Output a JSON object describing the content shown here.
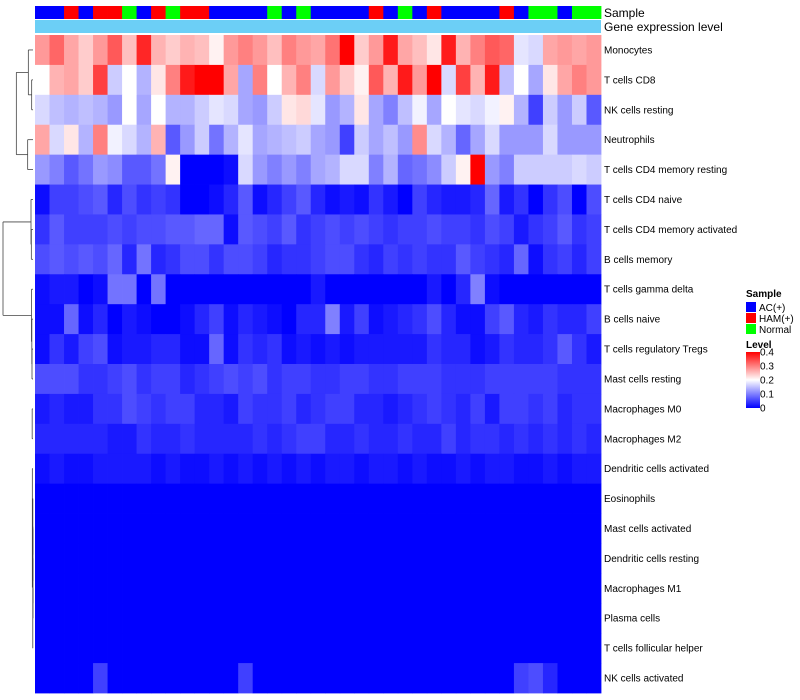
{
  "chart_data": {
    "type": "heatmap",
    "title": "",
    "value_range": [
      0,
      0.4
    ],
    "color_scale": [
      "#0000ff",
      "#ffffff",
      "#ff0000"
    ],
    "rows": [
      "Monocytes",
      "T cells CD8",
      "NK cells resting",
      "Neutrophils",
      "T cells CD4 memory resting",
      "T cells CD4 naive",
      "T cells CD4 memory activated",
      "B cells memory",
      "T cells gamma delta",
      "B cells naive",
      "T cells regulatory  Tregs",
      "Mast cells resting",
      "Macrophages M0",
      "Macrophages M2",
      "Dendritic cells activated",
      "Eosinophils",
      "Mast cells activated",
      "Dendritic cells resting",
      "Macrophages M1",
      "Plasma cells",
      "T cells follicular helper",
      "NK cells activated"
    ],
    "annotation_tracks": [
      {
        "name": "Sample",
        "label": "Sample"
      },
      {
        "name": "Gene expression level",
        "label": "Gene expression level",
        "color": "#6ccff6"
      }
    ],
    "sample_groups": [
      {
        "label": "AC(+)",
        "color": "#0000ff"
      },
      {
        "label": "HAM(+)",
        "color": "#ff0000"
      },
      {
        "label": "Normal",
        "color": "#00ff00"
      }
    ],
    "sample_annotation": [
      "AC(+)",
      "AC(+)",
      "HAM(+)",
      "AC(+)",
      "HAM(+)",
      "HAM(+)",
      "Normal",
      "AC(+)",
      "HAM(+)",
      "Normal",
      "HAM(+)",
      "HAM(+)",
      "AC(+)",
      "AC(+)",
      "AC(+)",
      "AC(+)",
      "Normal",
      "AC(+)",
      "Normal",
      "AC(+)",
      "AC(+)",
      "AC(+)",
      "AC(+)",
      "HAM(+)",
      "AC(+)",
      "Normal",
      "AC(+)",
      "HAM(+)",
      "AC(+)",
      "AC(+)",
      "AC(+)",
      "AC(+)",
      "HAM(+)",
      "AC(+)",
      "Normal",
      "Normal",
      "AC(+)",
      "Normal",
      "Normal"
    ],
    "values": [
      [
        0.28,
        0.32,
        0.27,
        0.24,
        0.28,
        0.33,
        0.25,
        0.37,
        0.26,
        0.24,
        0.26,
        0.25,
        0.21,
        0.28,
        0.3,
        0.28,
        0.25,
        0.3,
        0.28,
        0.27,
        0.31,
        0.4,
        0.24,
        0.28,
        0.38,
        0.27,
        0.25,
        0.22,
        0.38,
        0.26,
        0.3,
        0.33,
        0.32,
        0.18,
        0.17,
        0.27,
        0.28,
        0.27,
        0.28
      ],
      [
        0.2,
        0.26,
        0.27,
        0.24,
        0.35,
        0.16,
        0.2,
        0.14,
        0.22,
        0.3,
        0.38,
        0.4,
        0.4,
        0.27,
        0.13,
        0.3,
        0.2,
        0.26,
        0.3,
        0.17,
        0.28,
        0.24,
        0.21,
        0.33,
        0.26,
        0.38,
        0.28,
        0.4,
        0.17,
        0.35,
        0.26,
        0.38,
        0.15,
        0.2,
        0.13,
        0.22,
        0.27,
        0.3,
        0.28
      ],
      [
        0.17,
        0.15,
        0.14,
        0.15,
        0.14,
        0.12,
        0.2,
        0.13,
        0.2,
        0.14,
        0.14,
        0.16,
        0.18,
        0.17,
        0.13,
        0.12,
        0.16,
        0.22,
        0.23,
        0.18,
        0.12,
        0.14,
        0.22,
        0.13,
        0.1,
        0.15,
        0.19,
        0.13,
        0.2,
        0.18,
        0.17,
        0.19,
        0.21,
        0.14,
        0.05,
        0.16,
        0.12,
        0.16,
        0.07
      ],
      [
        0.27,
        0.17,
        0.22,
        0.14,
        0.3,
        0.19,
        0.17,
        0.14,
        0.26,
        0.07,
        0.12,
        0.16,
        0.09,
        0.14,
        0.18,
        0.13,
        0.14,
        0.15,
        0.16,
        0.13,
        0.12,
        0.05,
        0.16,
        0.13,
        0.15,
        0.12,
        0.29,
        0.17,
        0.14,
        0.08,
        0.13,
        0.17,
        0.12,
        0.12,
        0.12,
        0.17,
        0.12,
        0.12,
        0.12
      ],
      [
        0.12,
        0.1,
        0.07,
        0.09,
        0.12,
        0.11,
        0.07,
        0.07,
        0.09,
        0.21,
        0.0,
        0.0,
        0.0,
        0.01,
        0.17,
        0.12,
        0.1,
        0.12,
        0.1,
        0.13,
        0.14,
        0.17,
        0.17,
        0.1,
        0.14,
        0.08,
        0.09,
        0.11,
        0.16,
        0.21,
        0.4,
        0.12,
        0.1,
        0.16,
        0.16,
        0.16,
        0.16,
        0.17,
        0.16
      ],
      [
        0.01,
        0.05,
        0.05,
        0.06,
        0.07,
        0.03,
        0.06,
        0.04,
        0.05,
        0.04,
        0.0,
        0.0,
        0.01,
        0.03,
        0.07,
        0.01,
        0.03,
        0.05,
        0.07,
        0.03,
        0.01,
        0.02,
        0.01,
        0.04,
        0.02,
        0.0,
        0.05,
        0.03,
        0.02,
        0.02,
        0.03,
        0.08,
        0.02,
        0.04,
        0.0,
        0.04,
        0.06,
        0.0,
        0.06
      ],
      [
        0.04,
        0.07,
        0.05,
        0.05,
        0.05,
        0.06,
        0.05,
        0.06,
        0.06,
        0.07,
        0.07,
        0.08,
        0.08,
        0.01,
        0.07,
        0.06,
        0.05,
        0.07,
        0.04,
        0.05,
        0.06,
        0.05,
        0.06,
        0.05,
        0.04,
        0.05,
        0.05,
        0.06,
        0.05,
        0.05,
        0.04,
        0.06,
        0.05,
        0.02,
        0.04,
        0.05,
        0.07,
        0.04,
        0.05
      ],
      [
        0.06,
        0.07,
        0.06,
        0.07,
        0.06,
        0.08,
        0.03,
        0.09,
        0.03,
        0.04,
        0.06,
        0.06,
        0.04,
        0.06,
        0.06,
        0.05,
        0.03,
        0.04,
        0.04,
        0.05,
        0.06,
        0.06,
        0.04,
        0.03,
        0.05,
        0.04,
        0.05,
        0.04,
        0.04,
        0.07,
        0.05,
        0.04,
        0.03,
        0.08,
        0.01,
        0.04,
        0.05,
        0.03,
        0.05
      ],
      [
        0.01,
        0.02,
        0.02,
        0.0,
        0.01,
        0.09,
        0.09,
        0.0,
        0.09,
        0.0,
        0.0,
        0.0,
        0.0,
        0.0,
        0.0,
        0.0,
        0.0,
        0.0,
        0.0,
        0.02,
        0.0,
        0.0,
        0.0,
        0.0,
        0.0,
        0.0,
        0.0,
        0.02,
        0.0,
        0.03,
        0.1,
        0.01,
        0.0,
        0.0,
        0.0,
        0.0,
        0.0,
        0.0,
        0.0
      ],
      [
        0.01,
        0.01,
        0.08,
        0.01,
        0.03,
        0.0,
        0.02,
        0.01,
        0.0,
        0.0,
        0.01,
        0.03,
        0.05,
        0.01,
        0.03,
        0.02,
        0.01,
        0.0,
        0.03,
        0.03,
        0.1,
        0.02,
        0.05,
        0.01,
        0.02,
        0.03,
        0.04,
        0.06,
        0.03,
        0.01,
        0.01,
        0.05,
        0.07,
        0.03,
        0.02,
        0.04,
        0.03,
        0.03,
        0.05
      ],
      [
        0.01,
        0.04,
        0.02,
        0.05,
        0.06,
        0.01,
        0.02,
        0.02,
        0.03,
        0.03,
        0.01,
        0.01,
        0.08,
        0.01,
        0.04,
        0.03,
        0.04,
        0.01,
        0.02,
        0.01,
        0.02,
        0.01,
        0.02,
        0.02,
        0.02,
        0.02,
        0.02,
        0.04,
        0.03,
        0.03,
        0.01,
        0.02,
        0.04,
        0.03,
        0.03,
        0.04,
        0.07,
        0.04,
        0.02
      ],
      [
        0.06,
        0.06,
        0.06,
        0.04,
        0.04,
        0.05,
        0.06,
        0.04,
        0.05,
        0.05,
        0.03,
        0.04,
        0.05,
        0.06,
        0.05,
        0.06,
        0.04,
        0.05,
        0.05,
        0.04,
        0.04,
        0.05,
        0.05,
        0.04,
        0.04,
        0.05,
        0.05,
        0.05,
        0.04,
        0.04,
        0.04,
        0.05,
        0.05,
        0.05,
        0.05,
        0.05,
        0.04,
        0.04,
        0.04
      ],
      [
        0.02,
        0.03,
        0.02,
        0.02,
        0.04,
        0.04,
        0.06,
        0.05,
        0.04,
        0.05,
        0.05,
        0.03,
        0.03,
        0.02,
        0.05,
        0.04,
        0.04,
        0.05,
        0.03,
        0.04,
        0.05,
        0.05,
        0.03,
        0.03,
        0.02,
        0.03,
        0.04,
        0.05,
        0.04,
        0.03,
        0.05,
        0.02,
        0.05,
        0.05,
        0.04,
        0.05,
        0.03,
        0.04,
        0.04
      ],
      [
        0.03,
        0.03,
        0.03,
        0.03,
        0.03,
        0.02,
        0.02,
        0.04,
        0.03,
        0.03,
        0.04,
        0.03,
        0.03,
        0.03,
        0.03,
        0.04,
        0.03,
        0.04,
        0.05,
        0.05,
        0.03,
        0.03,
        0.04,
        0.03,
        0.03,
        0.04,
        0.03,
        0.03,
        0.05,
        0.03,
        0.04,
        0.04,
        0.03,
        0.04,
        0.03,
        0.04,
        0.03,
        0.04,
        0.03
      ],
      [
        0.01,
        0.02,
        0.01,
        0.01,
        0.02,
        0.02,
        0.02,
        0.02,
        0.01,
        0.02,
        0.01,
        0.01,
        0.02,
        0.01,
        0.02,
        0.01,
        0.02,
        0.01,
        0.02,
        0.01,
        0.02,
        0.02,
        0.01,
        0.02,
        0.02,
        0.01,
        0.02,
        0.01,
        0.01,
        0.02,
        0.01,
        0.02,
        0.02,
        0.01,
        0.01,
        0.02,
        0.01,
        0.02,
        0.02
      ],
      [
        0,
        0,
        0,
        0,
        0,
        0,
        0,
        0,
        0,
        0,
        0,
        0,
        0,
        0,
        0,
        0,
        0,
        0,
        0,
        0,
        0,
        0,
        0,
        0,
        0,
        0,
        0,
        0,
        0,
        0,
        0,
        0,
        0,
        0,
        0,
        0,
        0,
        0,
        0
      ],
      [
        0,
        0,
        0,
        0,
        0,
        0,
        0,
        0,
        0,
        0,
        0,
        0,
        0,
        0,
        0,
        0,
        0,
        0,
        0,
        0,
        0,
        0,
        0,
        0,
        0,
        0,
        0,
        0,
        0,
        0,
        0,
        0,
        0,
        0,
        0,
        0,
        0,
        0,
        0
      ],
      [
        0,
        0,
        0,
        0,
        0,
        0,
        0,
        0,
        0,
        0,
        0,
        0,
        0,
        0,
        0,
        0,
        0,
        0,
        0,
        0,
        0,
        0,
        0,
        0,
        0,
        0,
        0,
        0,
        0,
        0,
        0,
        0,
        0,
        0,
        0,
        0,
        0,
        0,
        0
      ],
      [
        0,
        0,
        0,
        0,
        0,
        0,
        0,
        0,
        0,
        0,
        0,
        0,
        0,
        0,
        0,
        0,
        0,
        0,
        0,
        0,
        0,
        0,
        0,
        0,
        0,
        0,
        0,
        0,
        0,
        0,
        0,
        0,
        0,
        0,
        0,
        0,
        0,
        0,
        0
      ],
      [
        0,
        0,
        0,
        0,
        0,
        0,
        0,
        0,
        0,
        0,
        0,
        0,
        0,
        0,
        0,
        0,
        0,
        0,
        0,
        0,
        0,
        0,
        0,
        0,
        0,
        0,
        0,
        0,
        0,
        0,
        0,
        0,
        0,
        0,
        0,
        0,
        0,
        0,
        0
      ],
      [
        0,
        0,
        0,
        0,
        0,
        0,
        0,
        0,
        0,
        0,
        0,
        0,
        0,
        0,
        0,
        0,
        0,
        0,
        0,
        0,
        0,
        0,
        0,
        0,
        0,
        0,
        0,
        0,
        0,
        0,
        0,
        0,
        0,
        0,
        0,
        0,
        0,
        0,
        0
      ],
      [
        0,
        0,
        0,
        0,
        0.05,
        0,
        0,
        0,
        0,
        0,
        0,
        0,
        0,
        0,
        0.05,
        0,
        0,
        0,
        0,
        0,
        0,
        0,
        0,
        0,
        0,
        0,
        0,
        0,
        0,
        0,
        0,
        0,
        0,
        0.05,
        0.06,
        0.03,
        0,
        0,
        0
      ]
    ],
    "row_dendrogram": [
      [
        1,
        2,
        0.04
      ],
      [
        0,
        1,
        0.14
      ],
      [
        18,
        19,
        0.002
      ],
      [
        17,
        18,
        0.003
      ],
      [
        16,
        17,
        0.004
      ],
      [
        15,
        16,
        0.005
      ],
      [
        19,
        20,
        0.006
      ],
      [
        14,
        15,
        0.02
      ],
      [
        12,
        13,
        0.025
      ],
      [
        10,
        11,
        0.03
      ],
      [
        9,
        10,
        0.035
      ],
      [
        8,
        9,
        0.045
      ],
      [
        6,
        7,
        0.05
      ],
      [
        5,
        6,
        0.06
      ],
      [
        3,
        4,
        0.16
      ],
      [
        2,
        3,
        0.5
      ],
      [
        7,
        8,
        0.9
      ]
    ],
    "legend": {
      "sample_title": "Sample",
      "level_title": "Level",
      "level_ticks": [
        0.4,
        0.3,
        0.2,
        0.1,
        0
      ],
      "position": "right"
    }
  }
}
